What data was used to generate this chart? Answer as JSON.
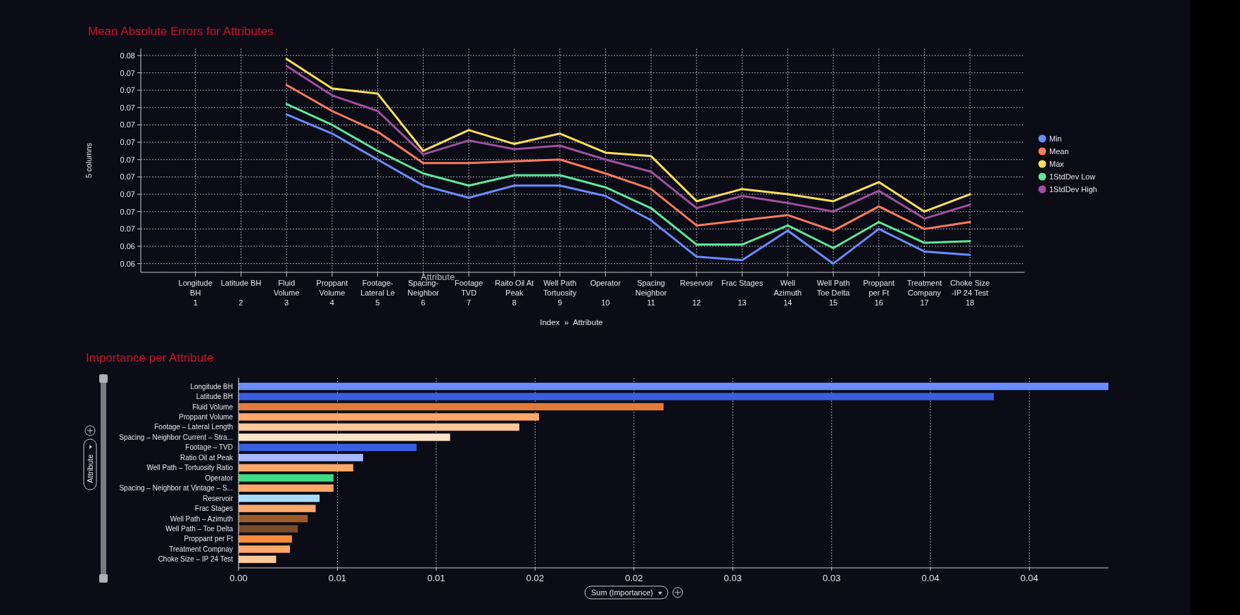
{
  "chart_data": [
    {
      "type": "line",
      "title": "Mean Absolute Errors for Attributes",
      "xlabel": "Index  »  Attribute",
      "ylabel": "5 columns",
      "annotations": [
        "Attribute"
      ],
      "categories": [
        "Longitude\nBH\n1",
        "Latitude BH\n\n2",
        "Fluid\nVolume\n3",
        "Proppant\nVolume\n4",
        "Footage-\nLateral Le\n5",
        "Spacing-\nNeighbor\n6",
        "Footage\nTVD\n7",
        "Raito Oil At\nPeak\n8",
        "Well Path\nTortuosity\n9",
        "Operator\n\n10",
        "Spacing\nNeighbor\n11",
        "Reservoir\n\n12",
        "Frac Stages\n\n13",
        "Well\nAzimuth\n14",
        "Well Path\nToe Delta\n15",
        "Proppant\nper Ft\n16",
        "Treatment\nCompany\n17",
        "Choke Size\n-IP 24 Test\n18"
      ],
      "series": [
        {
          "name": "Min",
          "color": "#6b8cff",
          "values": [
            null,
            null,
            0.0716,
            0.0705,
            0.069,
            0.0675,
            0.0668,
            0.0675,
            0.0675,
            0.0669,
            0.0655,
            0.0634,
            0.0632,
            0.0649,
            0.063,
            0.065,
            0.0637,
            0.0635
          ]
        },
        {
          "name": "Mean",
          "color": "#ff7a5c",
          "values": [
            null,
            null,
            0.0733,
            0.0718,
            0.0706,
            0.0688,
            0.0688,
            0.0689,
            0.069,
            0.0682,
            0.0673,
            0.0652,
            0.0655,
            0.0658,
            0.0649,
            0.0663,
            0.065,
            0.0654
          ]
        },
        {
          "name": "Max",
          "color": "#ffe055",
          "values": [
            null,
            null,
            0.0748,
            0.0731,
            0.0728,
            0.0695,
            0.0707,
            0.0699,
            0.0705,
            0.0694,
            0.0692,
            0.0666,
            0.0673,
            0.067,
            0.0666,
            0.0677,
            0.066,
            0.067
          ]
        },
        {
          "name": "1StdDev Low",
          "color": "#5ee89a",
          "values": [
            null,
            null,
            0.0722,
            0.071,
            0.0695,
            0.0682,
            0.0675,
            0.0681,
            0.0681,
            0.0674,
            0.0662,
            0.0641,
            0.0641,
            0.0652,
            0.0639,
            0.0654,
            0.0642,
            0.0643
          ]
        },
        {
          "name": "1StdDev High",
          "color": "#a0509e",
          "values": [
            null,
            null,
            0.0744,
            0.0727,
            0.0718,
            0.0693,
            0.0701,
            0.0696,
            0.0698,
            0.069,
            0.0683,
            0.0662,
            0.0669,
            0.0665,
            0.066,
            0.0672,
            0.0656,
            0.0664
          ]
        }
      ],
      "ylim": [
        0.0625,
        0.0754
      ],
      "yticks": [
        {
          "value": 0.063,
          "label": "0.06"
        },
        {
          "value": 0.064,
          "label": "0.06"
        },
        {
          "value": 0.065,
          "label": "0.07"
        },
        {
          "value": 0.066,
          "label": "0.07"
        },
        {
          "value": 0.067,
          "label": "0.07"
        },
        {
          "value": 0.068,
          "label": "0.07"
        },
        {
          "value": 0.069,
          "label": "0.07"
        },
        {
          "value": 0.07,
          "label": "0.07"
        },
        {
          "value": 0.071,
          "label": "0.07"
        },
        {
          "value": 0.072,
          "label": "0.07"
        },
        {
          "value": 0.073,
          "label": "0.07"
        },
        {
          "value": 0.074,
          "label": "0.07"
        },
        {
          "value": 0.075,
          "label": "0.08"
        }
      ],
      "grid": true,
      "legend": "right",
      "marker": "none",
      "line_style": "solid"
    },
    {
      "type": "bar",
      "orientation": "horizontal",
      "title": "Importance per Attribute",
      "xlabel": "Sum (Importance)",
      "ylabel": "Attribute",
      "categories": [
        "Longitude BH",
        "Latitude BH",
        "Fluid Volume",
        "Proppant Volume",
        "Footage – Lateral Length",
        "Spacing – Neighbor Current – Stra...",
        "Footage – TVD",
        "Ratio Oil at Peak",
        "Well Path – Tortuosity Ratio",
        "Operator",
        "Spacing – Neighbor at Vintage – S...",
        "Reservoir",
        "Frac Stages",
        "Well Path – Azimuth",
        "Well Path – Toe Delta",
        "Proppant per Ft",
        "Treatment Compnay",
        "Choke Size – IP 24 Test"
      ],
      "values": [
        0.044,
        0.0382,
        0.0215,
        0.0152,
        0.0142,
        0.0107,
        0.009,
        0.0063,
        0.0058,
        0.0048,
        0.0048,
        0.0041,
        0.0039,
        0.0035,
        0.003,
        0.0027,
        0.0026,
        0.0019
      ],
      "colors": [
        "#6b8cff",
        "#3a5fe0",
        "#e07b39",
        "#ffa868",
        "#ffc89a",
        "#ffe4cc",
        "#3a5fe0",
        "#a8b8ff",
        "#ffa868",
        "#3ddc84",
        "#ffa868",
        "#a8dcff",
        "#ffa868",
        "#9c5a28",
        "#7a4a2a",
        "#ff8c3a",
        "#ffa868",
        "#ffc89a"
      ],
      "xlim": [
        0,
        0.044
      ],
      "xticks": [
        {
          "value": 0,
          "label": "0.00"
        },
        {
          "value": 0.005,
          "label": "0.01"
        },
        {
          "value": 0.01,
          "label": "0.01"
        },
        {
          "value": 0.015,
          "label": "0.02"
        },
        {
          "value": 0.02,
          "label": "0.02"
        },
        {
          "value": 0.025,
          "label": "0.03"
        },
        {
          "value": 0.03,
          "label": "0.03"
        },
        {
          "value": 0.035,
          "label": "0.04"
        },
        {
          "value": 0.04,
          "label": "0.04"
        }
      ],
      "grid": "x"
    }
  ]
}
